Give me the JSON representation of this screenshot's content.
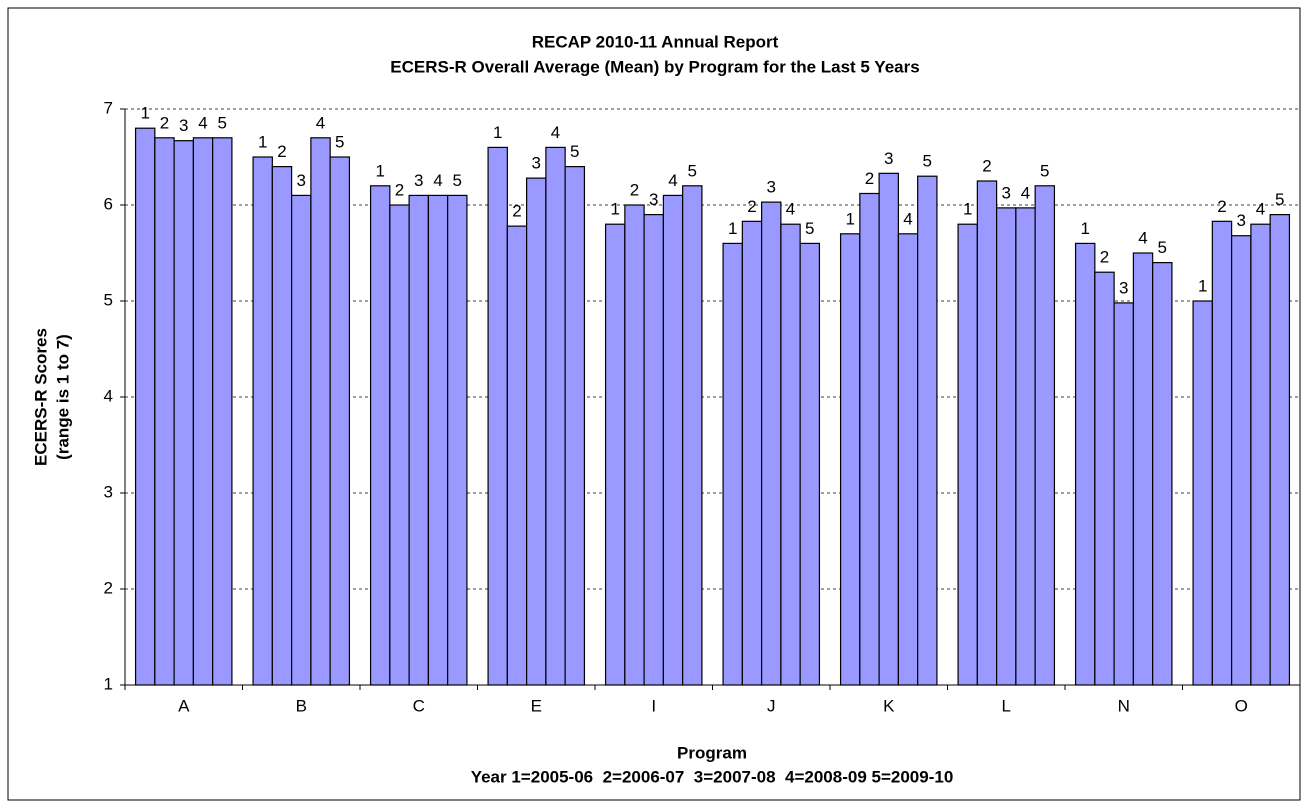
{
  "chart_data": {
    "type": "bar",
    "title": "RECAP 2010-11 Annual Report",
    "subtitle": "ECERS-R Overall Average (Mean) by Program for the Last 5 Years",
    "y_label_line1": "ECERS-R Scores",
    "y_label_line2": "(range is 1 to 7)",
    "x_label": "Program",
    "x_note": "Year 1=2005-06  2=2006-07  3=2007-08  4=2008-09 5=2009-10",
    "categories": [
      "A",
      "B",
      "C",
      "E",
      "I",
      "J",
      "K",
      "L",
      "N",
      "O"
    ],
    "series": [
      {
        "name": "1",
        "color": "#9999ff",
        "values": [
          6.8,
          6.5,
          6.2,
          6.6,
          5.8,
          5.6,
          5.7,
          5.8,
          5.6,
          5.0
        ]
      },
      {
        "name": "2",
        "color": "#9999ff",
        "values": [
          6.7,
          6.4,
          6.0,
          5.78,
          6.0,
          5.83,
          6.12,
          6.25,
          5.3,
          5.83
        ]
      },
      {
        "name": "3",
        "color": "#9999ff",
        "values": [
          6.67,
          6.1,
          6.1,
          6.28,
          5.9,
          6.03,
          6.33,
          5.97,
          4.98,
          5.68
        ]
      },
      {
        "name": "4",
        "color": "#9999ff",
        "values": [
          6.7,
          6.7,
          6.1,
          6.6,
          6.1,
          5.8,
          5.7,
          5.97,
          5.5,
          5.8
        ]
      },
      {
        "name": "5",
        "color": "#9999ff",
        "values": [
          6.7,
          6.5,
          6.1,
          6.4,
          6.2,
          5.6,
          6.3,
          6.2,
          5.4,
          5.9
        ]
      }
    ],
    "ylim": [
      1,
      7
    ],
    "yticks": [
      1,
      2,
      3,
      4,
      5,
      6,
      7
    ],
    "grid": true
  }
}
